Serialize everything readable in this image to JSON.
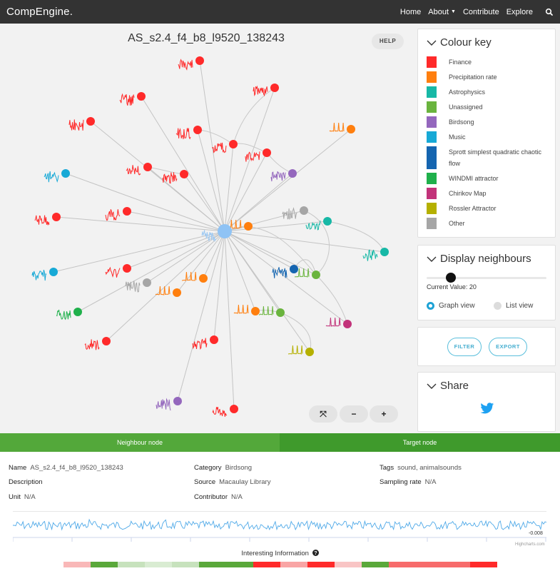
{
  "nav": {
    "brand": "CompEngine.",
    "links": [
      "Home",
      "About",
      "Contribute",
      "Explore"
    ],
    "icons": {
      "about_caret": "caret-down-icon",
      "search": "search-icon"
    }
  },
  "graph": {
    "title": "AS_s2.4_f4_b8_l9520_138243",
    "help_label": "HELP",
    "zoom": {
      "fit": "⤧",
      "out": "−",
      "in": "+"
    }
  },
  "colour_key": {
    "heading": "Colour key",
    "items": [
      {
        "label": "Finance",
        "color": "#ff2a2a"
      },
      {
        "label": "Precipitation rate",
        "color": "#ff7f0e"
      },
      {
        "label": "Astrophysics",
        "color": "#17b8a6"
      },
      {
        "label": "Unassigned",
        "color": "#6ab43e"
      },
      {
        "label": "Birdsong",
        "color": "#9467bd"
      },
      {
        "label": "Music",
        "color": "#17a9d6"
      },
      {
        "label": "Sprott simplest quadratic chaotic flow",
        "color": "#1565b0"
      },
      {
        "label": "WINDMI attractor",
        "color": "#1fb04b"
      },
      {
        "label": "Chirikov Map",
        "color": "#c2337a"
      },
      {
        "label": "Rossler Attractor",
        "color": "#b5b000"
      },
      {
        "label": "Other",
        "color": "#a6a6a6"
      }
    ]
  },
  "neighbours": {
    "heading": "Display neighbours",
    "current_value_label": "Current Value: 20",
    "slider_value": 20,
    "graph_view": "Graph view",
    "list_view": "List view"
  },
  "actions": {
    "filter": "FILTER",
    "export": "EXPORT"
  },
  "share": {
    "heading": "Share",
    "icon": "twitter-icon"
  },
  "tabs": {
    "neighbour": "Neighbour node",
    "target": "Target node"
  },
  "details": {
    "name_label": "Name",
    "name": "AS_s2.4_f4_b8_l9520_138243",
    "category_label": "Category",
    "category": "Birdsong",
    "tags_label": "Tags",
    "tags": "sound, animalsounds",
    "description_label": "Description",
    "source_label": "Source",
    "source": "Macaulay Library",
    "sampling_label": "Sampling rate",
    "sampling": "N/A",
    "unit_label": "Unit",
    "unit": "N/A",
    "contributor_label": "Contributor",
    "contributor": "N/A"
  },
  "timeseries": {
    "last_value": "-0.008",
    "credit": "Highcharts.com"
  },
  "interesting": {
    "title": "Interesting Information",
    "icon": "help-circle-icon",
    "cells": [
      "#f9b8b8",
      "#5aa83a",
      "#c7e2bd",
      "#d9ecd2",
      "#c7e2bd",
      "#5aa83a",
      "#5aa83a",
      "#ff2a2a",
      "#f9a5a5",
      "#ff2a2a",
      "#f9c5c5",
      "#5aa83a",
      "#f76b6b",
      "#f76b6b",
      "#f76b6b",
      "#ff2a2a"
    ]
  }
}
